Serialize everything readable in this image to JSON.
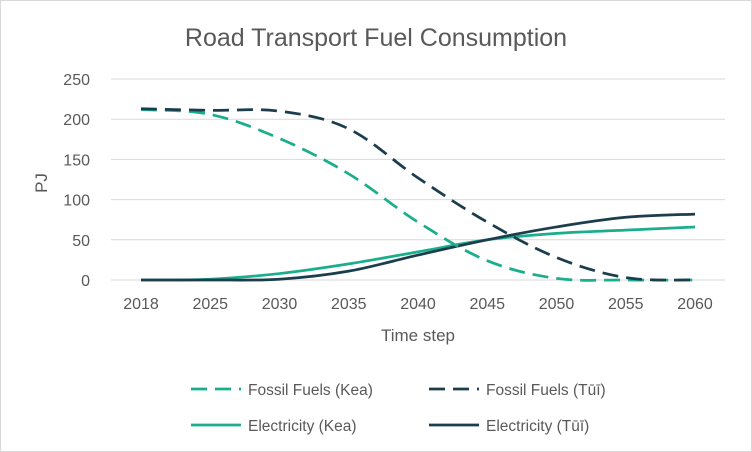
{
  "chart_data": {
    "type": "line",
    "title": "Road Transport Fuel Consumption",
    "xlabel": "Time step",
    "ylabel": "PJ",
    "categories": [
      "2018",
      "2025",
      "2030",
      "2035",
      "2040",
      "2045",
      "2050",
      "2055",
      "2060"
    ],
    "ylim": [
      0,
      250
    ],
    "yticks": [
      "0",
      "50",
      "100",
      "150",
      "200",
      "250"
    ],
    "grid": "horizontal",
    "legend_position": "bottom",
    "series": [
      {
        "name": "Fossil Fuels (Kea)",
        "color": "#1aae8c",
        "dash": "dashed",
        "values": [
          212,
          206,
          176,
          132,
          72,
          24,
          2,
          0,
          0
        ]
      },
      {
        "name": "Fossil Fuels (Tūī)",
        "color": "#1c3d4d",
        "dash": "dashed",
        "values": [
          213,
          211,
          210,
          188,
          127,
          72,
          28,
          3,
          0
        ]
      },
      {
        "name": "Electricity (Kea)",
        "color": "#1aae8c",
        "dash": "solid",
        "values": [
          0,
          1,
          8,
          20,
          35,
          50,
          58,
          62,
          66
        ]
      },
      {
        "name": "Electricity (Tūī)",
        "color": "#1c3d4d",
        "dash": "solid",
        "values": [
          0,
          0,
          1,
          11,
          31,
          50,
          66,
          78,
          82
        ]
      }
    ]
  }
}
